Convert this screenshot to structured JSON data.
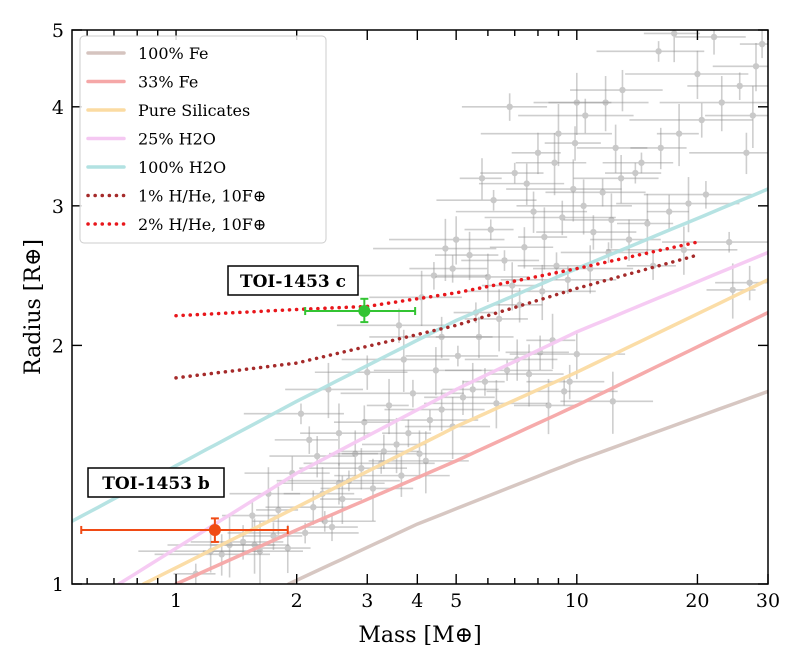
{
  "chart_data": {
    "type": "scatter",
    "title": "",
    "xlabel": "Mass [M⊕]",
    "ylabel": "Radius [R⊕]",
    "xscale": "log",
    "yscale": "log",
    "xlim": [
      0.55,
      30
    ],
    "ylim": [
      1,
      5
    ],
    "xticks": [
      1,
      2,
      3,
      4,
      5,
      10,
      20,
      30
    ],
    "xtick_labels": [
      "1",
      "2",
      "3",
      "4",
      "5",
      "10",
      "20",
      "30"
    ],
    "yticks": [
      1,
      2,
      3,
      4,
      5
    ],
    "ytick_labels": [
      "1",
      "2",
      "3",
      "4",
      "5"
    ],
    "legend_position": "top-left",
    "composition_curves": [
      {
        "name": "100% Fe",
        "color": "#d5c4bf",
        "style": "solid",
        "points": [
          [
            1.91,
            1.0
          ],
          [
            4.0,
            1.19
          ],
          [
            10,
            1.43
          ],
          [
            30,
            1.75
          ]
        ]
      },
      {
        "name": "33% Fe",
        "color": "#f5a7a7",
        "style": "solid",
        "points": [
          [
            1.0,
            1.0
          ],
          [
            2.0,
            1.17
          ],
          [
            5.0,
            1.43
          ],
          [
            10,
            1.68
          ],
          [
            30,
            2.2
          ]
        ]
      },
      {
        "name": "Pure Silicates",
        "color": "#fbdba2",
        "style": "solid",
        "points": [
          [
            0.83,
            1.0
          ],
          [
            2.0,
            1.25
          ],
          [
            5.0,
            1.58
          ],
          [
            10,
            1.85
          ],
          [
            30,
            2.42
          ]
        ]
      },
      {
        "name": "25% H2O",
        "color": "#f5c8f2",
        "style": "solid",
        "points": [
          [
            0.72,
            1.0
          ],
          [
            2.0,
            1.38
          ],
          [
            5.0,
            1.76
          ],
          [
            10,
            2.08
          ],
          [
            30,
            2.62
          ]
        ]
      },
      {
        "name": "100% H2O",
        "color": "#b2e2e2",
        "style": "solid",
        "points": [
          [
            0.55,
            1.2
          ],
          [
            1.0,
            1.41
          ],
          [
            2.0,
            1.7
          ],
          [
            5.0,
            2.15
          ],
          [
            10,
            2.5
          ],
          [
            30,
            3.15
          ]
        ]
      },
      {
        "name": "1% H/He, 10F⊕",
        "color": "#a52a2a",
        "style": "dotted",
        "points": [
          [
            1.0,
            1.82
          ],
          [
            2.0,
            1.9
          ],
          [
            5.0,
            2.12
          ],
          [
            10,
            2.36
          ],
          [
            20,
            2.6
          ]
        ]
      },
      {
        "name": "2% H/He, 10F⊕",
        "color": "#e8161b",
        "style": "dotted",
        "points": [
          [
            1.0,
            2.18
          ],
          [
            2.0,
            2.22
          ],
          [
            3.0,
            2.24
          ],
          [
            5.0,
            2.33
          ],
          [
            10,
            2.5
          ],
          [
            20,
            2.7
          ]
        ]
      }
    ],
    "series": [
      {
        "name": "TOI-1453 c",
        "color": "#33c433",
        "x": 2.95,
        "y": 2.21,
        "xerr": [
          0.85,
          1.0
        ],
        "yerr": [
          0.07,
          0.08
        ]
      },
      {
        "name": "TOI-1453 b",
        "color": "#f04a14",
        "x": 1.25,
        "y": 1.17,
        "xerr": [
          0.67,
          0.65
        ],
        "yerr": [
          0.04,
          0.04
        ]
      }
    ],
    "background_planets": [
      [
        1.12,
        1.03
      ],
      [
        1.22,
        1.1
      ],
      [
        1.36,
        1.12
      ],
      [
        1.47,
        1.13
      ],
      [
        1.57,
        1.12
      ],
      [
        1.75,
        1.15
      ],
      [
        1.9,
        1.11
      ],
      [
        2.1,
        1.16
      ],
      [
        1.3,
        1.09
      ],
      [
        1.62,
        1.1
      ],
      [
        2.2,
        1.25
      ],
      [
        2.32,
        1.3
      ],
      [
        2.45,
        1.18
      ],
      [
        2.6,
        1.28
      ],
      [
        2.7,
        1.35
      ],
      [
        2.9,
        1.4
      ],
      [
        3.1,
        1.32
      ],
      [
        3.3,
        1.47
      ],
      [
        3.55,
        1.5
      ],
      [
        3.8,
        1.55
      ],
      [
        4.05,
        1.46
      ],
      [
        4.3,
        1.61
      ],
      [
        4.6,
        1.66
      ],
      [
        4.9,
        1.58
      ],
      [
        5.2,
        1.72
      ],
      [
        5.5,
        1.76
      ],
      [
        5.9,
        1.8
      ],
      [
        6.3,
        1.69
      ],
      [
        6.7,
        1.86
      ],
      [
        7.1,
        1.92
      ],
      [
        7.6,
        1.84
      ],
      [
        8.1,
        1.96
      ],
      [
        8.7,
        2.03
      ],
      [
        9.3,
        1.75
      ],
      [
        10.0,
        1.95
      ],
      [
        2.05,
        1.64
      ],
      [
        2.25,
        1.45
      ],
      [
        2.55,
        1.55
      ],
      [
        2.95,
        1.6
      ],
      [
        3.4,
        1.68
      ],
      [
        3.9,
        1.74
      ],
      [
        4.45,
        1.86
      ],
      [
        5.05,
        1.94
      ],
      [
        5.7,
        2.05
      ],
      [
        6.4,
        2.16
      ],
      [
        7.2,
        2.25
      ],
      [
        8.2,
        2.34
      ],
      [
        9.5,
        2.42
      ],
      [
        10.8,
        2.5
      ],
      [
        12.0,
        2.62
      ],
      [
        13.5,
        2.72
      ],
      [
        15.0,
        2.85
      ],
      [
        17.0,
        2.95
      ],
      [
        19.0,
        3.02
      ],
      [
        21.0,
        3.1
      ],
      [
        6.0,
        2.44
      ],
      [
        6.6,
        2.56
      ],
      [
        7.4,
        2.66
      ],
      [
        8.3,
        2.74
      ],
      [
        9.2,
        2.9
      ],
      [
        10.4,
        3.0
      ],
      [
        11.6,
        3.12
      ],
      [
        12.9,
        3.25
      ],
      [
        14.5,
        3.4
      ],
      [
        16.2,
        3.55
      ],
      [
        18.0,
        3.7
      ],
      [
        20.5,
        3.85
      ],
      [
        23.0,
        4.05
      ],
      [
        25.5,
        4.25
      ],
      [
        28.0,
        4.5
      ],
      [
        7.0,
        3.3
      ],
      [
        8.0,
        3.5
      ],
      [
        9.0,
        3.7
      ],
      [
        10.5,
        3.9
      ],
      [
        11.8,
        4.05
      ],
      [
        6.8,
        4.0
      ],
      [
        12.5,
        3.55
      ],
      [
        14.0,
        3.3
      ],
      [
        5.8,
        3.25
      ],
      [
        4.7,
        2.65
      ],
      [
        3.6,
        2.12
      ],
      [
        4.1,
        2.3
      ],
      [
        4.9,
        2.5
      ],
      [
        5.4,
        2.6
      ],
      [
        6.1,
        2.8
      ],
      [
        7.8,
        2.95
      ],
      [
        9.8,
        3.15
      ],
      [
        11.0,
        2.78
      ],
      [
        12.2,
        2.88
      ],
      [
        8.9,
        2.52
      ],
      [
        6.9,
        2.38
      ],
      [
        5.6,
        2.2
      ],
      [
        4.6,
        2.05
      ],
      [
        3.7,
        1.92
      ],
      [
        3.0,
        1.85
      ],
      [
        2.4,
        1.76
      ],
      [
        2.15,
        1.52
      ],
      [
        2.8,
        1.46
      ],
      [
        3.25,
        1.42
      ],
      [
        3.65,
        1.37
      ],
      [
        4.2,
        1.43
      ],
      [
        1.95,
        1.38
      ],
      [
        1.7,
        1.3
      ],
      [
        1.55,
        1.22
      ],
      [
        1.8,
        1.24
      ],
      [
        2.35,
        1.2
      ],
      [
        2.55,
        1.34
      ],
      [
        12.3,
        1.7
      ],
      [
        9.6,
        1.8
      ],
      [
        8.5,
        1.68
      ],
      [
        15.5,
        2.52
      ],
      [
        18.5,
        2.64
      ],
      [
        24.0,
        2.7
      ],
      [
        26.5,
        3.5
      ],
      [
        27.5,
        3.9
      ],
      [
        22.0,
        4.9
      ],
      [
        17.5,
        4.95
      ],
      [
        29.0,
        4.8
      ],
      [
        20.0,
        4.4
      ],
      [
        16.0,
        4.7
      ],
      [
        13.0,
        4.2
      ],
      [
        10.0,
        4.05
      ],
      [
        27.0,
        2.4
      ],
      [
        24.5,
        2.35
      ],
      [
        4.4,
        2.45
      ],
      [
        5.0,
        2.72
      ],
      [
        6.2,
        3.05
      ],
      [
        7.5,
        3.2
      ],
      [
        8.8,
        3.4
      ],
      [
        9.9,
        3.6
      ]
    ]
  },
  "annotations": {
    "planet_c_label": "TOI-1453 c",
    "planet_b_label": "TOI-1453 b"
  }
}
